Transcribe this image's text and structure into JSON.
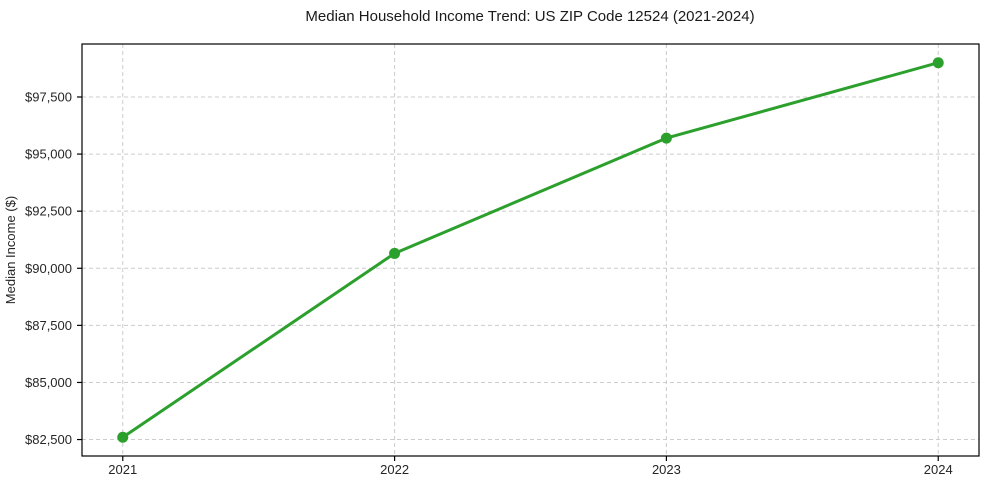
{
  "chart_data": {
    "type": "line",
    "title": "Median Household Income Trend: US ZIP Code 12524 (2021-2024)",
    "ylabel": "Median Income ($)",
    "xlabel": "",
    "categories": [
      "2021",
      "2022",
      "2023",
      "2024"
    ],
    "x": [
      2021,
      2022,
      2023,
      2024
    ],
    "series": [
      {
        "values": [
          82600,
          90650,
          95700,
          99000
        ]
      }
    ],
    "yticks": [
      {
        "value": 82500,
        "label": "$82,500"
      },
      {
        "value": 85000,
        "label": "$85,000"
      },
      {
        "value": 87500,
        "label": "$87,500"
      },
      {
        "value": 90000,
        "label": "$90,000"
      },
      {
        "value": 92500,
        "label": "$92,500"
      },
      {
        "value": 95000,
        "label": "$95,000"
      },
      {
        "value": 97500,
        "label": "$97,500"
      }
    ],
    "ylim": [
      81780,
      99820
    ],
    "xlim": [
      2020.85,
      2024.15
    ],
    "grid": true,
    "grid_style": "dashed",
    "legend": "none",
    "colors": {
      "line": "#2ca02c",
      "marker": "#2ca02c",
      "grid": "#cccccc",
      "axis": "#000000",
      "text": "#262626",
      "background": "#ffffff"
    }
  }
}
